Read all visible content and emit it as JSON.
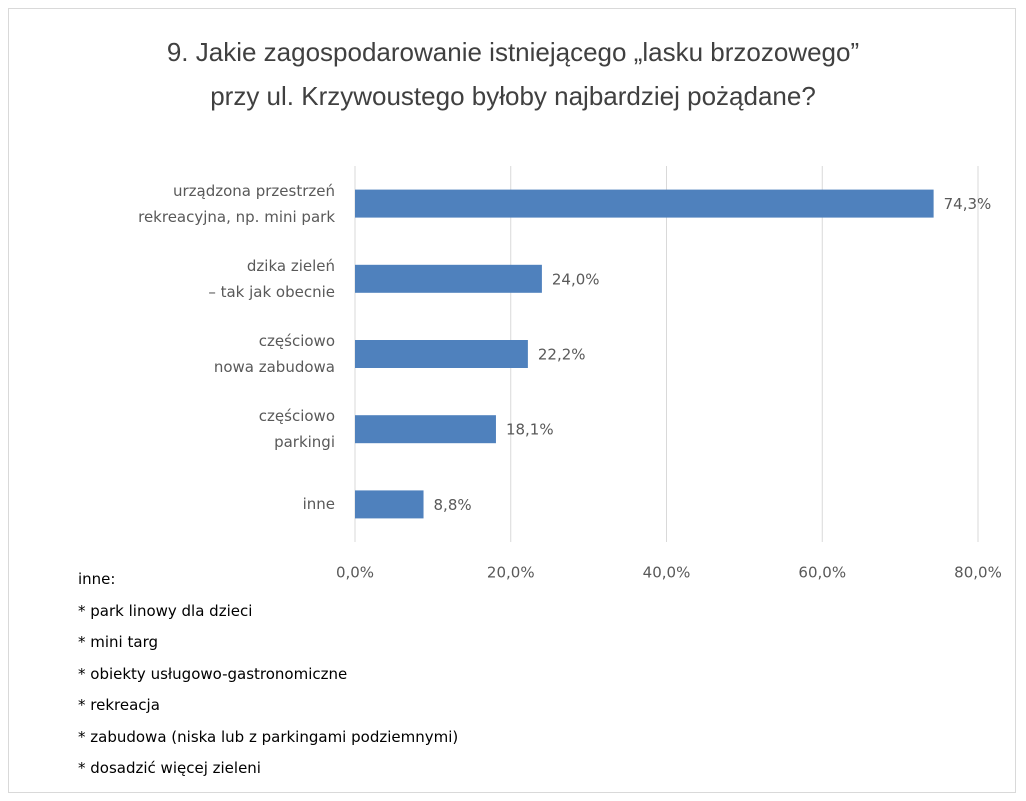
{
  "chart_data": {
    "type": "barh",
    "title": "9. Jakie zagospodarowanie istniejącego „lasku brzozowego”\nprzy ul. Krzywoustego byłoby najbardziej pożądane?",
    "categories": [
      "urządzona przestrzeń\nrekreacyjna, np. mini park",
      "dzika zieleń\n– tak jak obecnie",
      "częściowo\nnowa zabudowa",
      "częściowo\nparkingi",
      "inne"
    ],
    "values": [
      74.3,
      24.0,
      22.2,
      18.1,
      8.8
    ],
    "value_labels": [
      "74,3%",
      "24,0%",
      "22,2%",
      "18,1%",
      "8,8%"
    ],
    "color": "#4f81bd",
    "xlim": [
      0,
      80
    ],
    "xticks": [
      {
        "value": 0,
        "label": "0,0%"
      },
      {
        "value": 20,
        "label": "20,0%"
      },
      {
        "value": 40,
        "label": "40,0%"
      },
      {
        "value": 60,
        "label": "60,0%"
      },
      {
        "value": 80,
        "label": "80,0%"
      }
    ],
    "grid": true
  },
  "notes": {
    "title": "inne:",
    "items": [
      "* park linowy dla dzieci",
      "* mini targ",
      "* obiekty usługowo-gastronomiczne",
      "* rekreacja",
      "* zabudowa (niska lub z parkingami podziemnymi)",
      "* dosadzić więcej zieleni"
    ]
  }
}
